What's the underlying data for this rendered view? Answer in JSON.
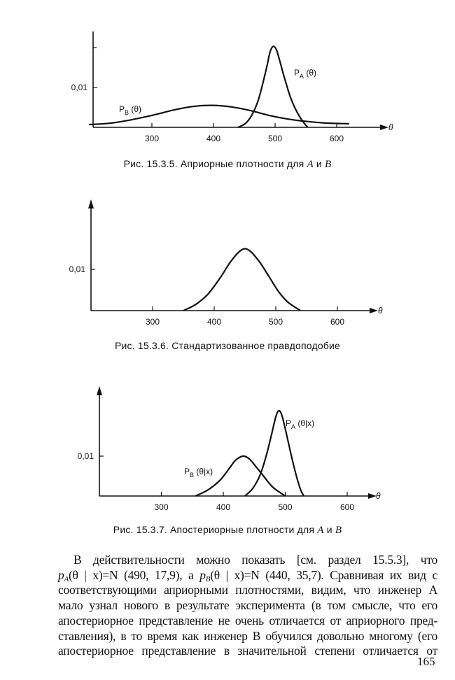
{
  "chart_data": [
    {
      "type": "line",
      "title": "Рис. 15.3.5. Априорные плотности для A и B",
      "xlabel": "θ",
      "ylabel": "",
      "xticks": [
        "300",
        "400",
        "500",
        "600"
      ],
      "yticks": [
        "0,01"
      ],
      "xlim": [
        198,
        660
      ],
      "ylim": [
        0,
        0.021
      ],
      "series": [
        {
          "name": "P_A (θ)",
          "label_main": "P",
          "label_sub": "A",
          "label_arg": "(θ)",
          "x": [
            440,
            452,
            462,
            472,
            480,
            487,
            492,
            497,
            502,
            507,
            515,
            525,
            535,
            545,
            553
          ],
          "y": [
            0,
            0.001,
            0.003,
            0.0065,
            0.011,
            0.0155,
            0.019,
            0.0203,
            0.0195,
            0.017,
            0.0125,
            0.0075,
            0.004,
            0.0015,
            0
          ]
        },
        {
          "name": "P_B (θ)",
          "label_main": "P",
          "label_sub": "B",
          "label_arg": "(θ)",
          "x": [
            198,
            230,
            260,
            300,
            340,
            370,
            400,
            430,
            460,
            490,
            520,
            550,
            580,
            620
          ],
          "y": [
            0.0007,
            0.001,
            0.0017,
            0.003,
            0.0045,
            0.0053,
            0.0055,
            0.0051,
            0.0042,
            0.003,
            0.0021,
            0.0015,
            0.0011,
            0.0009
          ]
        }
      ]
    },
    {
      "type": "line",
      "title": "Рис. 15.3.6. Стандартизованное правдоподобие",
      "xlabel": "θ",
      "ylabel": "",
      "xticks": [
        "300",
        "400",
        "500",
        "600"
      ],
      "yticks": [
        "0,01"
      ],
      "xlim": [
        200,
        660
      ],
      "ylim": [
        0,
        0.025
      ],
      "series": [
        {
          "name": "likelihood",
          "x": [
            350,
            370,
            390,
            410,
            425,
            440,
            450,
            460,
            475,
            490,
            505,
            520,
            540
          ],
          "y": [
            0,
            0.0015,
            0.004,
            0.008,
            0.0115,
            0.0142,
            0.015,
            0.0142,
            0.0115,
            0.008,
            0.0045,
            0.002,
            0
          ]
        }
      ]
    },
    {
      "type": "line",
      "title": "Рис. 15.3.7. Апостериорные плотности для A и B",
      "xlabel": "θ",
      "ylabel": "",
      "xticks": [
        "300",
        "400",
        "500",
        "600"
      ],
      "yticks": [
        "0,01"
      ],
      "xlim": [
        200,
        660
      ],
      "ylim": [
        0,
        0.025
      ],
      "series": [
        {
          "name": "P_A (θ|x)",
          "label_main": "P",
          "label_sub": "A",
          "label_arg": "(θ|x)",
          "x": [
            435,
            448,
            460,
            470,
            478,
            485,
            490,
            495,
            502,
            510,
            518,
            525,
            530
          ],
          "y": [
            0,
            0.002,
            0.0055,
            0.0105,
            0.0155,
            0.02,
            0.0214,
            0.02,
            0.0155,
            0.01,
            0.005,
            0.0015,
            0
          ]
        },
        {
          "name": "P_B (θ|x)",
          "label_main": "P",
          "label_sub": "B",
          "label_arg": "(θ|x)",
          "x": [
            355,
            375,
            395,
            410,
            420,
            432,
            442,
            452,
            465,
            480,
            500
          ],
          "y": [
            0,
            0.0015,
            0.004,
            0.007,
            0.009,
            0.01,
            0.0093,
            0.0075,
            0.005,
            0.0022,
            0
          ]
        }
      ]
    }
  ],
  "captions": {
    "fig1_prefix": "Рис. 15.3.5. Априорные плотности для ",
    "fig1_a": "A",
    "fig1_and": " и ",
    "fig1_b": "B",
    "fig2": "Рис. 15.3.6. Стандартизованное правдоподобие",
    "fig3_prefix": "Рис. 15.3.7. Апостериорные плотности для ",
    "fig3_a": "A",
    "fig3_and": " и ",
    "fig3_b": "B"
  },
  "paragraph": {
    "line1": "В действительности можно показать [см. раздел 15.5.3], что",
    "line2_pa": "p",
    "line2_pa_sub": "A",
    "line2_pa_rest": "(θ | x)=N (490, 17,9), а ",
    "line2_pb": "p",
    "line2_pb_sub": "B",
    "line2_pb_rest": "(θ | x)=N (440, 35,7). Сравнивая их вид с",
    "line3": "соответствующими априорными плотностями, видим, что инженер A",
    "line4": "мало узнал нового в результате эксперимента (в том смысле, что его",
    "line5": "апостериорное представление не очень отличается от априорного пред-",
    "line6": "ставления), в то время как инженер B обучился довольно многому (его",
    "line7": "апостериорное представление в значительной степени отличается от"
  },
  "page_number": "165"
}
